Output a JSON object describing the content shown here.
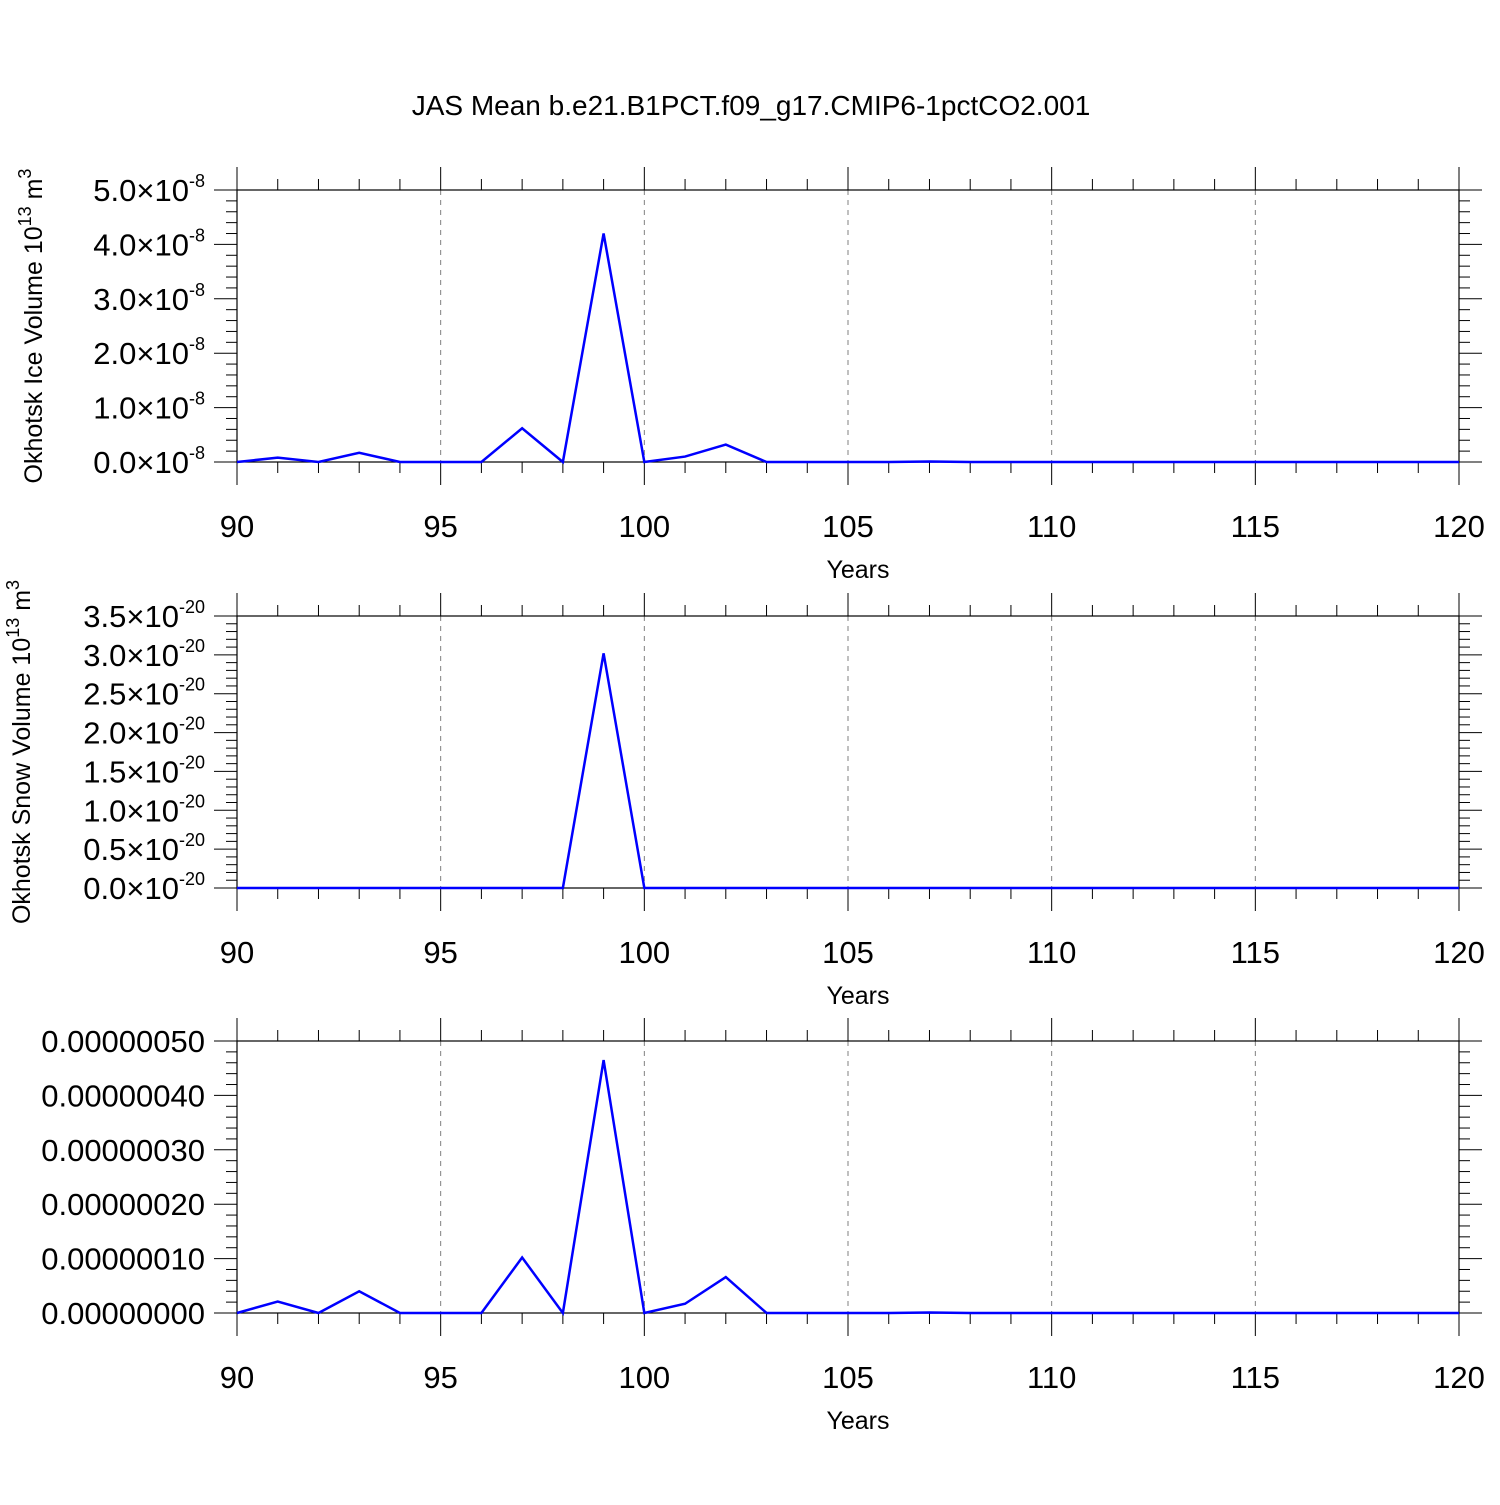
{
  "title": "JAS Mean b.e21.B1PCT.f09_g17.CMIP6-1pctCO2.001",
  "colors": {
    "line": "#0000ff",
    "axis": "#000000",
    "grid": "#808080",
    "background": "#ffffff"
  },
  "chart_data": [
    {
      "type": "line",
      "xlabel": "Years",
      "ylabel": "Okhotsk Ice Volume 10",
      "ylabel_exp": "13",
      "ylabel_unit": " m",
      "ylabel_unit_exp": "3",
      "xlim": [
        90,
        120
      ],
      "ylim": [
        0,
        5e-08
      ],
      "grid": "x-dashed",
      "x_ticks": [
        "90",
        "95",
        "100",
        "105",
        "110",
        "115",
        "120"
      ],
      "y_ticks": [
        {
          "mant": "0.0",
          "exp": "-8"
        },
        {
          "mant": "1.0",
          "exp": "-8"
        },
        {
          "mant": "2.0",
          "exp": "-8"
        },
        {
          "mant": "3.0",
          "exp": "-8"
        },
        {
          "mant": "4.0",
          "exp": "-8"
        },
        {
          "mant": "5.0",
          "exp": "-8"
        }
      ],
      "x": [
        90,
        91,
        92,
        93,
        94,
        95,
        96,
        97,
        98,
        99,
        100,
        101,
        102,
        103,
        104,
        105,
        106,
        107,
        108,
        109,
        110,
        111,
        112,
        113,
        114,
        115,
        116,
        117,
        118,
        119,
        120
      ],
      "y": [
        0,
        8e-10,
        0,
        1.7e-09,
        0,
        0,
        0,
        6.2e-09,
        0,
        4.2e-08,
        0,
        1e-09,
        3.2e-09,
        0,
        0,
        0,
        0,
        1e-10,
        0,
        0,
        0,
        0,
        0,
        0,
        0,
        0,
        0,
        0,
        0,
        0,
        0
      ]
    },
    {
      "type": "line",
      "xlabel": "Years",
      "ylabel": "Okhotsk Snow Volume 10",
      "ylabel_exp": "13",
      "ylabel_unit": " m",
      "ylabel_unit_exp": "3",
      "xlim": [
        90,
        120
      ],
      "ylim": [
        0,
        3.5e-20
      ],
      "grid": "x-dashed",
      "x_ticks": [
        "90",
        "95",
        "100",
        "105",
        "110",
        "115",
        "120"
      ],
      "y_ticks": [
        {
          "mant": "0.0",
          "exp": "-20"
        },
        {
          "mant": "0.5",
          "exp": "-20"
        },
        {
          "mant": "1.0",
          "exp": "-20"
        },
        {
          "mant": "1.5",
          "exp": "-20"
        },
        {
          "mant": "2.0",
          "exp": "-20"
        },
        {
          "mant": "2.5",
          "exp": "-20"
        },
        {
          "mant": "3.0",
          "exp": "-20"
        },
        {
          "mant": "3.5",
          "exp": "-20"
        }
      ],
      "x": [
        90,
        91,
        92,
        93,
        94,
        95,
        96,
        97,
        98,
        99,
        100,
        101,
        102,
        103,
        104,
        105,
        106,
        107,
        108,
        109,
        110,
        111,
        112,
        113,
        114,
        115,
        116,
        117,
        118,
        119,
        120
      ],
      "y": [
        0,
        0,
        0,
        0,
        0,
        0,
        0,
        0,
        0,
        3.02e-20,
        0,
        0,
        0,
        0,
        0,
        0,
        0,
        0,
        0,
        0,
        0,
        0,
        0,
        0,
        0,
        0,
        0,
        0,
        0,
        0,
        0
      ]
    },
    {
      "type": "line",
      "xlabel": "Years",
      "ylabel": "",
      "xlim": [
        90,
        120
      ],
      "ylim": [
        0,
        5e-07
      ],
      "grid": "x-dashed",
      "x_ticks": [
        "90",
        "95",
        "100",
        "105",
        "110",
        "115",
        "120"
      ],
      "y_ticks": [
        {
          "text": "0.00000000"
        },
        {
          "text": "0.00000010"
        },
        {
          "text": "0.00000020"
        },
        {
          "text": "0.00000030"
        },
        {
          "text": "0.00000040"
        },
        {
          "text": "0.00000050"
        }
      ],
      "x": [
        90,
        91,
        92,
        93,
        94,
        95,
        96,
        97,
        98,
        99,
        100,
        101,
        102,
        103,
        104,
        105,
        106,
        107,
        108,
        109,
        110,
        111,
        112,
        113,
        114,
        115,
        116,
        117,
        118,
        119,
        120
      ],
      "y": [
        0,
        2.1e-08,
        0,
        4e-08,
        0,
        0,
        0,
        1.02e-07,
        0,
        4.65e-07,
        0,
        1.7e-08,
        6.6e-08,
        0,
        0,
        0,
        0,
        1e-09,
        0,
        0,
        0,
        0,
        0,
        0,
        0,
        0,
        0,
        0,
        0,
        0,
        0
      ]
    }
  ]
}
